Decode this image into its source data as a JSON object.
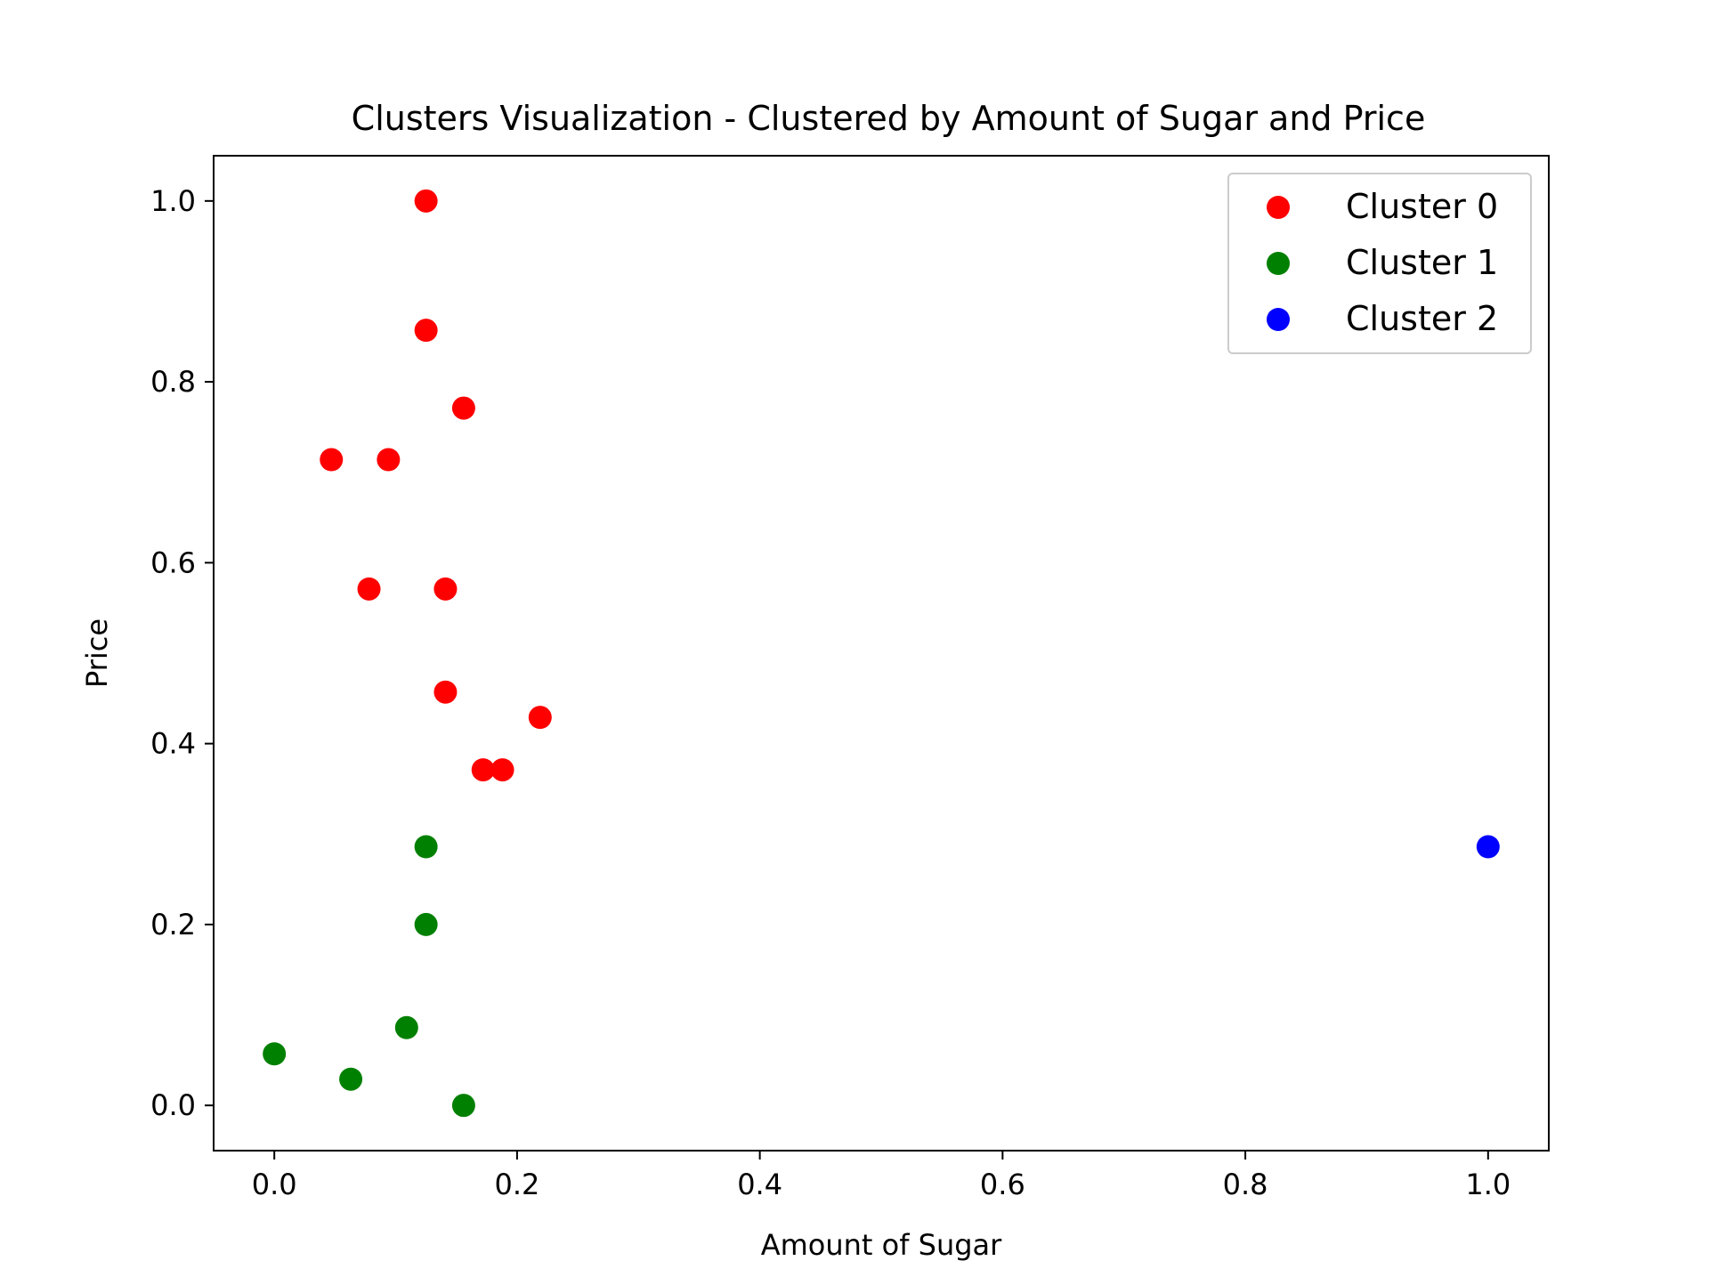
{
  "chart_data": {
    "type": "scatter",
    "title": "Clusters Visualization - Clustered by Amount of Sugar and Price",
    "xlabel": "Amount of Sugar",
    "ylabel": "Price",
    "xlim": [
      -0.05,
      1.05
    ],
    "ylim": [
      -0.05,
      1.05
    ],
    "xticks": [
      0.0,
      0.2,
      0.4,
      0.6,
      0.8,
      1.0
    ],
    "yticks": [
      0.0,
      0.2,
      0.4,
      0.6,
      0.8,
      1.0
    ],
    "xtick_labels": [
      "0.0",
      "0.2",
      "0.4",
      "0.6",
      "0.8",
      "1.0"
    ],
    "ytick_labels": [
      "0.0",
      "0.2",
      "0.4",
      "0.6",
      "0.8",
      "1.0"
    ],
    "grid": false,
    "legend_position": "top-right",
    "series": [
      {
        "name": "Cluster 0",
        "color": "#ff0000",
        "points": [
          [
            0.125,
            1.0
          ],
          [
            0.125,
            0.857
          ],
          [
            0.156,
            0.771
          ],
          [
            0.047,
            0.714
          ],
          [
            0.094,
            0.714
          ],
          [
            0.078,
            0.571
          ],
          [
            0.141,
            0.571
          ],
          [
            0.141,
            0.457
          ],
          [
            0.219,
            0.429
          ],
          [
            0.172,
            0.371
          ],
          [
            0.188,
            0.371
          ]
        ]
      },
      {
        "name": "Cluster 1",
        "color": "#008000",
        "points": [
          [
            0.125,
            0.286
          ],
          [
            0.125,
            0.2
          ],
          [
            0.109,
            0.086
          ],
          [
            0.0,
            0.057
          ],
          [
            0.063,
            0.029
          ],
          [
            0.156,
            0.0
          ]
        ]
      },
      {
        "name": "Cluster 2",
        "color": "#0000ff",
        "points": [
          [
            1.0,
            0.286
          ]
        ]
      }
    ]
  }
}
